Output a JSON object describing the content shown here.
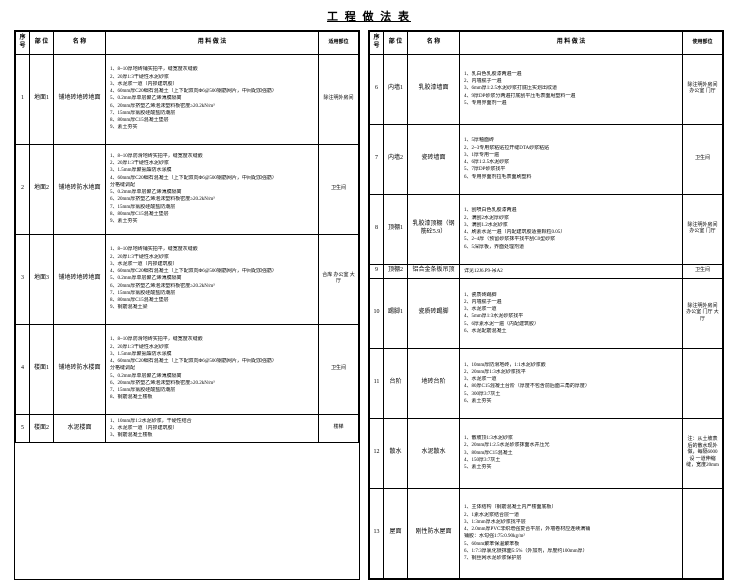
{
  "title": "工 程 做 法 表",
  "headers": {
    "idx": "序号",
    "part": "部 位",
    "name": "名 称",
    "desc": "用  料  做  法",
    "note": "适用部位",
    "note2": "使用部位"
  },
  "left": [
    {
      "idx": "1",
      "part": "地面1",
      "name": "铺地砖地砖地面",
      "desc": [
        "1、8~10厚地砖铺实拍平，缝宽度灰缝嵌",
        "2、20厚1:3干硬性水泥砂浆",
        "3、水泥浆一道（内掺建筑胶）",
        "4、60mm厚C20细石混凝土（上下配双向Φ6@500钢筋网片，中间配加强筋）",
        "5、0.2mm厚单层聚乙烯薄膜隔离",
        "6、20mm厚挤塑乙烯泡沫塑料板密度≥20.2kN/m³",
        "7、15mm厚氯胶硅酸盐防潮层",
        "8、80mm厚C15混凝土垫层",
        "9、素土夯实"
      ],
      "note": "除注明外房间"
    },
    {
      "idx": "2",
      "part": "地面2",
      "name": "铺地砖防水地面",
      "desc": [
        "1、8~10厚防滑地砖实拍平，缝宽度灰缝嵌",
        "2、20厚1:3干硬性水泥砂浆",
        "3、1.5mm厚聚氨酯防水涂膜",
        "4、60mm厚C20细石混凝土（上下配双向Φ6@500钢筋网片，中间配加强筋）",
        "  分格缝调配",
        "5、0.2mm厚单层聚乙烯薄膜隔离",
        "6、20mm厚挤塑乙烯泡沫塑料板密度≥20.2kN/m³",
        "7、15mm厚氯胶硅酸盐防潮层",
        "8、80mm厚C15混凝土垫层",
        "9、素土夯实"
      ],
      "note": "卫生间"
    },
    {
      "idx": "3",
      "part": "地面3",
      "name": "铺地砖地砖地面",
      "desc": [
        "1、8~10厚地砖铺实拍平，缝宽度灰缝嵌",
        "2、20厚1:3干硬性水泥砂浆",
        "3、水泥浆一道（内掺建筑胶）",
        "4、60mm厚C20细石混凝土（上下配双向Φ6@500钢筋网片，中间配加强筋）",
        "5、0.2mm厚单层聚乙烯薄膜隔离",
        "6、20mm厚挤塑乙烯泡沫塑料板密度≥20.2kN/m³",
        "7、15mm厚氯胶硅酸盐防潮层",
        "8、80mm厚C15混凝土垫层",
        "9、钢筋混凝土梁"
      ],
      "note": "合库 办公室 大厅"
    },
    {
      "idx": "4",
      "part": "楼面1",
      "name": "铺地砖防水楼面",
      "desc": [
        "1、8~10厚防滑地砖实拍平，缝宽度灰缝嵌",
        "2、20厚1:3干硬性水泥砂浆",
        "3、1.5mm厚聚氨酯防水涂膜",
        "4、60mm厚C20细石混凝土（上下配双向Φ6@500钢筋网片，中间配加强筋）",
        "  分格缝调配",
        "5、0.2mm厚单层聚乙烯薄膜隔离",
        "6、20mm厚挤塑乙烯泡沫塑料板密度≥20.2kN/m³",
        "7、15mm厚氯胶硅酸盐防潮层",
        "8、钢筋混凝土楼板"
      ],
      "note": "卫生间"
    },
    {
      "idx": "5",
      "part": "楼面2",
      "name": "水泥楼面",
      "desc": [
        "1、10mm厚1:2水泥砂浆，干硬性结合",
        "2、水泥浆一道（内掺建筑胶）",
        "3、钢筋混凝土楼板"
      ],
      "note": "楼梯"
    }
  ],
  "right": [
    {
      "idx": "6",
      "part": "内墙1",
      "name": "乳胶漆墙面",
      "desc": [
        "1、乳白色乳胶漆两遍一遍",
        "2、内墙腻子一遍",
        "3、6mm厚1:2.5水泥砂浆打底压实划出纹道",
        "4、9厚DP砂浆分两遍打底刮平压毛表面甩塑料一遍",
        "5、专用界面剂一遍"
      ],
      "note": "除注明外房间 办公室 门厅"
    },
    {
      "idx": "7",
      "part": "内墙2",
      "name": "瓷砖墙面",
      "desc": [
        "1、5厚釉面砖",
        "2、2~3专用浆粘贴拉开缝DTA砂浆粘贴",
        "3、1厚专用一遍",
        "4、6厚1:2.5水泥砂浆",
        "5、7厚DP砂浆找平",
        "6、专用界面剂拉毛表面刷塑料"
      ],
      "note": "卫生间"
    },
    {
      "idx": "8",
      "part": "顶棚1",
      "name": "乳胶漆顶棚（钢筋砼5.9）",
      "desc": [
        "1、刮喷白色乳胶漆两遍",
        "2、满刮2水泥厚砂浆",
        "3、满刮1.2水泥砂浆",
        "4、刷素水泥一遍（内配建筑胶适量颗粒0.05）",
        "5、2~4厚（预留砂浆抹平找平刮C0型砂浆",
        "6、5深厚板，界面处理剂道"
      ],
      "note": "除注明外房间 办公室 门厅"
    },
    {
      "idx": "9",
      "part": "顶棚2",
      "name": "铝合金条板吊顶",
      "desc": [
        "详见12J6.P9-吊A2"
      ],
      "note": "卫生间"
    },
    {
      "idx": "10",
      "part": "踢脚1",
      "name": "瓷质砖踢脚",
      "desc": [
        "1、瓷质砖踢脚",
        "2、内墙腻子一遍",
        "3、水泥浆一道",
        "4、5mm厚1:3水泥砂浆找平",
        "5、6厚素水泥一遍（内配建筑胶）",
        "6、水泥配筋混凝土"
      ],
      "note": "除注明外房间 办公室 门厅 大厅"
    },
    {
      "idx": "11",
      "part": "台阶",
      "name": "地砖台阶",
      "desc": [
        "1、10mm厚防滑地砖，1:1水泥砂浆嵌",
        "2、20mm厚1:3水泥砂浆找平",
        "3、水泥浆一道",
        "4、80厚C15混凝土台阶（厚度不包含前后面三角的厚度）",
        "5、300厚3:7灰土",
        "6、素土夯实"
      ],
      "note": ""
    },
    {
      "idx": "12",
      "part": "散水",
      "name": "水泥散水",
      "desc": [
        "1、散坡顶1:3水泥砂浆",
        "2、20mm厚1:2.5水泥砂浆抹面水并压光",
        "3、80mm厚C15混凝土",
        "4、150厚3:7灰土",
        "5、素土夯实"
      ],
      "note": "注：从土坡表后的散水现外做，每隔6000设 一道伸缩缝，宽度20mm"
    },
    {
      "idx": "13",
      "part": "屋面",
      "name": "刚性防水屋面",
      "desc": [
        "1、主体结构（钢筋混凝土内产楼面底板）",
        "2、1素水泥浆结合层一道",
        "3、1:3mm厚水泥砂浆找平层",
        "4、2.0mm厚PVC非织增强复合平层，外墙卷材应连续满铺",
        "  铺胶：水勾强1:75:0.90kg/m²",
        "5、60mm聚苯保温聚苯板",
        "6、1:7:3厚氯化镁抹面5:5%（外加剂，厚度约100mm厚）",
        "7、钢丝网水泥砂浆保护层"
      ],
      "note": ""
    }
  ]
}
